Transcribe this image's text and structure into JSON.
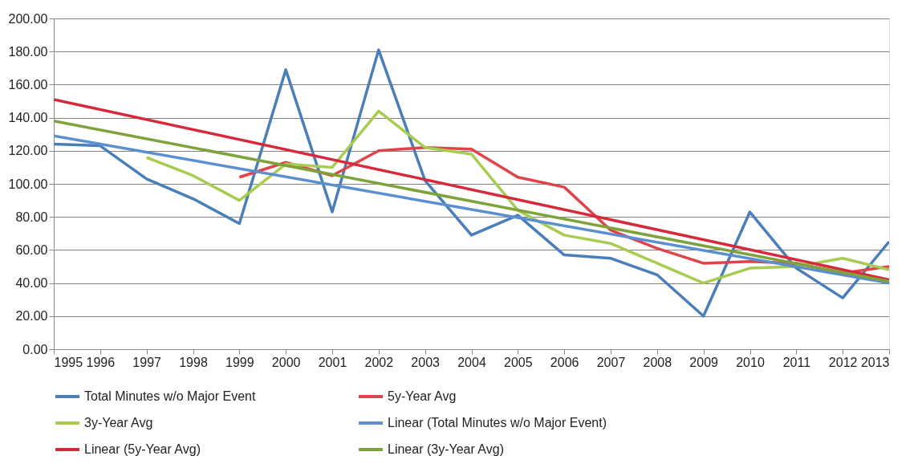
{
  "chart_data": {
    "type": "line",
    "xlim": [
      1995,
      2013
    ],
    "xticks": [
      1995,
      1996,
      1997,
      1998,
      1999,
      2000,
      2001,
      2002,
      2003,
      2004,
      2005,
      2006,
      2007,
      2008,
      2009,
      2010,
      2011,
      2012,
      2013
    ],
    "ylim": [
      0,
      200
    ],
    "yticks": [
      {
        "value": 0,
        "label": "0.00"
      },
      {
        "value": 20,
        "label": "20.00"
      },
      {
        "value": 40,
        "label": "40.00"
      },
      {
        "value": 60,
        "label": "60.00"
      },
      {
        "value": 80,
        "label": "80.00"
      },
      {
        "value": 100,
        "label": "100.00"
      },
      {
        "value": 120,
        "label": "120.00"
      },
      {
        "value": 140,
        "label": "140.00"
      },
      {
        "value": 160,
        "label": "160.00"
      },
      {
        "value": 180,
        "label": "180.00"
      },
      {
        "value": 200,
        "label": "200.00"
      }
    ],
    "grid": "y",
    "legend": "bottom",
    "marker": "none",
    "line_style": "solid",
    "series": [
      {
        "name": "Total Minutes w/o Major Event",
        "color": "#4a7ebb",
        "x": [
          1995,
          1996,
          1997,
          1998,
          1999,
          2000,
          2001,
          2002,
          2003,
          2004,
          2005,
          2006,
          2007,
          2008,
          2009,
          2010,
          2011,
          2012,
          2013
        ],
        "values": [
          124,
          123,
          103,
          91,
          76,
          169,
          83,
          181,
          102,
          69,
          81,
          57,
          55,
          45,
          20,
          83,
          49,
          31,
          65
        ]
      },
      {
        "name": "5y-Year Avg",
        "color": "#e0444a",
        "x": [
          1999,
          2000,
          2001,
          2002,
          2003,
          2004,
          2005,
          2006,
          2007,
          2008,
          2009,
          2010,
          2011,
          2012,
          2013
        ],
        "values": [
          104,
          113,
          105,
          120,
          122,
          121,
          104,
          98,
          72,
          61,
          52,
          53,
          52,
          46,
          50
        ]
      },
      {
        "name": "3y-Year Avg",
        "color": "#a8cc50",
        "x": [
          1997,
          1998,
          1999,
          2000,
          2001,
          2002,
          2003,
          2004,
          2005,
          2006,
          2007,
          2008,
          2009,
          2010,
          2011,
          2012,
          2013
        ],
        "values": [
          116,
          105,
          90,
          112,
          110,
          144,
          122,
          118,
          84,
          69,
          64,
          52,
          40,
          49,
          50,
          55,
          48
        ]
      },
      {
        "name": "Linear (Total Minutes w/o Major Event)",
        "color": "#5b8fd0",
        "x": [
          1995,
          2013
        ],
        "values": [
          129,
          40
        ]
      },
      {
        "name": "Linear (5y-Year Avg)",
        "color": "#d62a3c",
        "x": [
          1995,
          2013
        ],
        "values": [
          151,
          42
        ]
      },
      {
        "name": "Linear (3y-Year Avg)",
        "color": "#7fa33c",
        "x": [
          1995,
          2013
        ],
        "values": [
          138,
          41
        ]
      }
    ]
  }
}
